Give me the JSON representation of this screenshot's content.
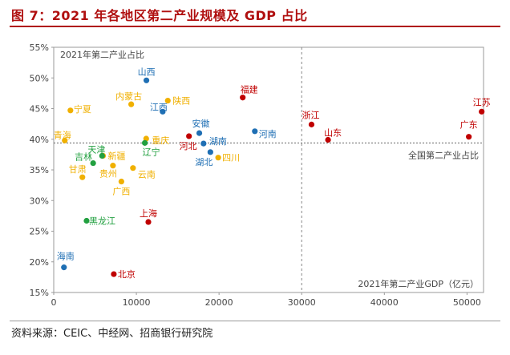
{
  "title": "图 7：2021 年各地区第二产业规模及 GDP 占比",
  "source": "资料来源：CEIC、中经网、招商银行研究院",
  "colors": {
    "title": "#b01010",
    "red": "#c00000",
    "blue": "#1f6fb4",
    "orange": "#f0b000",
    "green": "#22a040"
  },
  "chart_data": {
    "type": "scatter",
    "y_axis_title": "2021年第二产业占比",
    "x_axis_title": "2021年第二产业GDP（亿元）",
    "ref_line_label": "全国第二产业占比",
    "ref_y": 39.4,
    "ref_x": 30000,
    "xlim": [
      0,
      52000
    ],
    "ylim": [
      15,
      55
    ],
    "x_ticks": [
      0,
      10000,
      20000,
      30000,
      40000,
      50000
    ],
    "y_ticks": [
      15,
      20,
      25,
      30,
      35,
      40,
      45,
      50,
      55
    ],
    "y_tick_suffix": "%",
    "points": [
      {
        "name": "江苏",
        "x": 51775,
        "y": 44.5,
        "group": "red"
      },
      {
        "name": "广东",
        "x": 50219,
        "y": 40.4,
        "group": "red"
      },
      {
        "name": "山东",
        "x": 33187,
        "y": 39.9,
        "group": "red"
      },
      {
        "name": "浙江",
        "x": 31189,
        "y": 42.4,
        "group": "red"
      },
      {
        "name": "福建",
        "x": 22866,
        "y": 46.8,
        "group": "red"
      },
      {
        "name": "河北",
        "x": 16364,
        "y": 40.5,
        "group": "red"
      },
      {
        "name": "上海",
        "x": 11449,
        "y": 26.5,
        "group": "red"
      },
      {
        "name": "北京",
        "x": 7268,
        "y": 18.0,
        "group": "red"
      },
      {
        "name": "河南",
        "x": 24331,
        "y": 41.3,
        "group": "blue"
      },
      {
        "name": "湖南",
        "x": 18126,
        "y": 39.3,
        "group": "blue"
      },
      {
        "name": "湖北",
        "x": 18952,
        "y": 37.9,
        "group": "blue"
      },
      {
        "name": "安徽",
        "x": 17613,
        "y": 41.0,
        "group": "blue"
      },
      {
        "name": "江西",
        "x": 13183,
        "y": 44.5,
        "group": "blue"
      },
      {
        "name": "山西",
        "x": 11213,
        "y": 49.6,
        "group": "blue"
      },
      {
        "name": "海南",
        "x": 1238,
        "y": 19.1,
        "group": "blue"
      },
      {
        "name": "四川",
        "x": 19901,
        "y": 37.0,
        "group": "orange"
      },
      {
        "name": "陕西",
        "x": 13802,
        "y": 46.3,
        "group": "orange"
      },
      {
        "name": "内蒙古",
        "x": 9374,
        "y": 45.7,
        "group": "orange"
      },
      {
        "name": "重庆",
        "x": 11185,
        "y": 40.1,
        "group": "orange"
      },
      {
        "name": "云南",
        "x": 9589,
        "y": 35.3,
        "group": "orange"
      },
      {
        "name": "广西",
        "x": 8187,
        "y": 33.1,
        "group": "orange"
      },
      {
        "name": "新疆",
        "x": 5967,
        "y": 37.3,
        "group": "orange"
      },
      {
        "name": "贵州",
        "x": 7166,
        "y": 35.7,
        "group": "orange"
      },
      {
        "name": "宁夏",
        "x": 2021,
        "y": 44.7,
        "group": "orange"
      },
      {
        "name": "青海",
        "x": 1333,
        "y": 39.8,
        "group": "orange"
      },
      {
        "name": "甘肃",
        "x": 3466,
        "y": 33.8,
        "group": "orange"
      },
      {
        "name": "天津",
        "x": 5854,
        "y": 37.3,
        "group": "green"
      },
      {
        "name": "辽宁",
        "x": 11023,
        "y": 39.4,
        "group": "green"
      },
      {
        "name": "吉林",
        "x": 4768,
        "y": 36.1,
        "group": "green"
      },
      {
        "name": "黑龙江",
        "x": 3976,
        "y": 26.7,
        "group": "green"
      }
    ]
  }
}
